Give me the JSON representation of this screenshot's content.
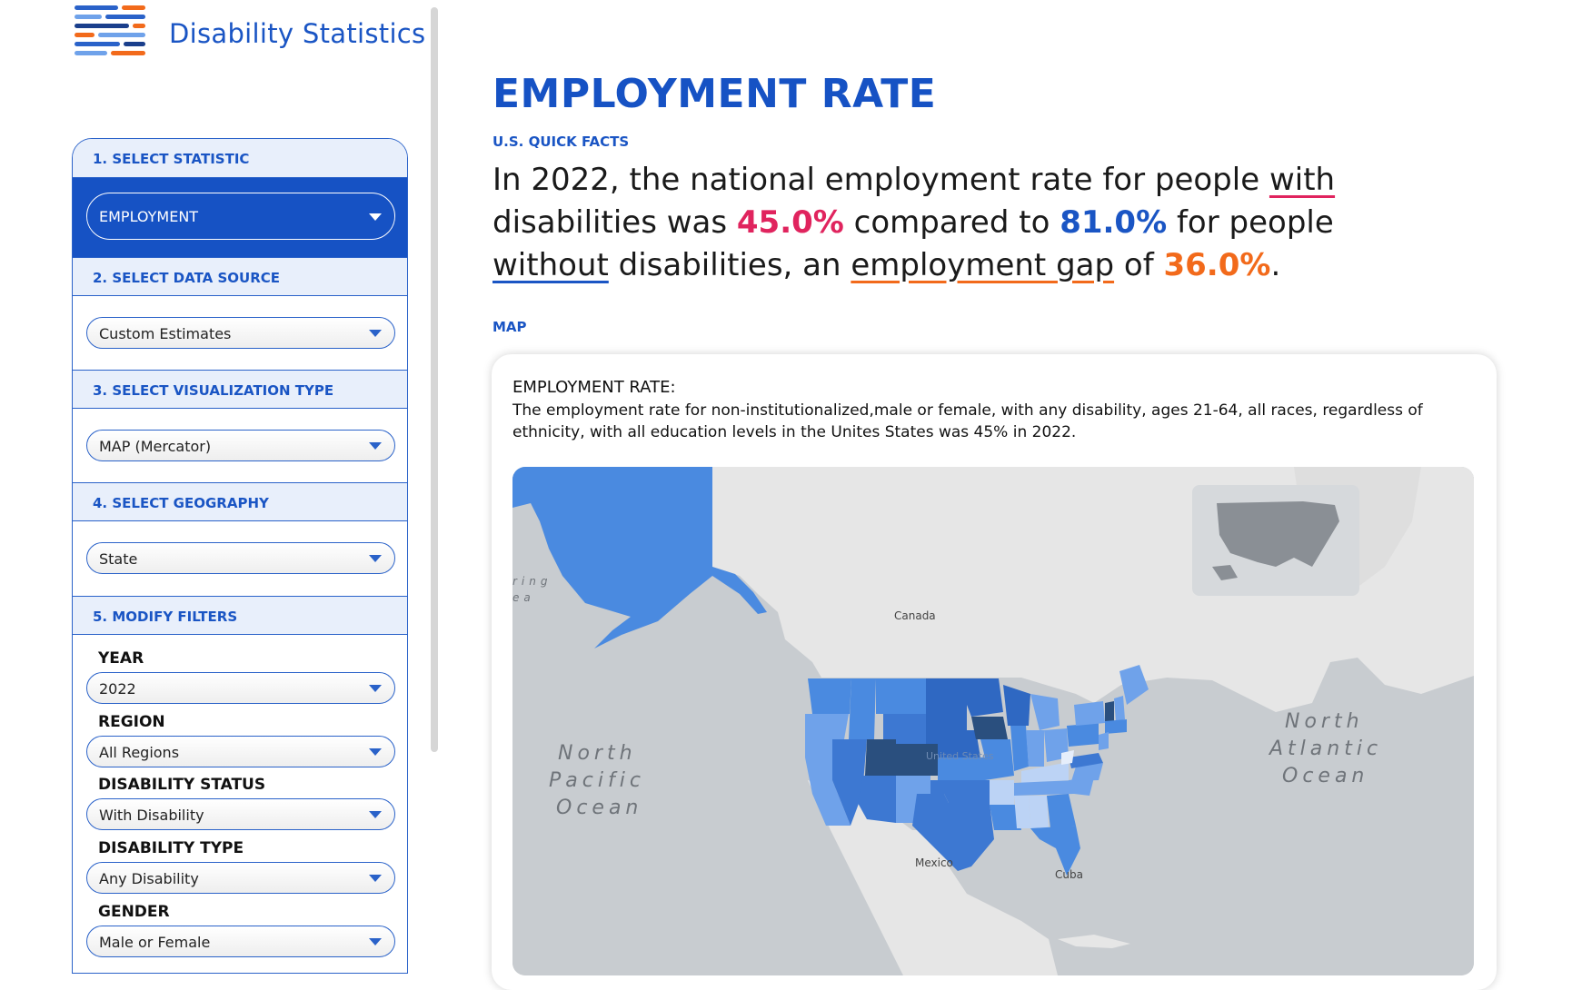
{
  "header": {
    "brand": "Disability Statistics"
  },
  "sidebar": {
    "sections": [
      {
        "heading": "1. SELECT STATISTIC",
        "value": "EMPLOYMENT"
      },
      {
        "heading": "2. SELECT DATA SOURCE",
        "value": "Custom Estimates"
      },
      {
        "heading": "3. SELECT VISUALIZATION TYPE",
        "value": "MAP (Mercator)"
      },
      {
        "heading": "4. SELECT GEOGRAPHY",
        "value": "State"
      },
      {
        "heading": "5. MODIFY FILTERS"
      }
    ],
    "filters": [
      {
        "label": "YEAR",
        "value": "2022"
      },
      {
        "label": "REGION",
        "value": "All Regions"
      },
      {
        "label": "DISABILITY STATUS",
        "value": "With Disability"
      },
      {
        "label": "DISABILITY TYPE",
        "value": "Any Disability"
      },
      {
        "label": "GENDER",
        "value": "Male or Female"
      }
    ]
  },
  "main": {
    "title": "EMPLOYMENT RATE",
    "quick_facts_label": "U.S. QUICK FACTS",
    "fact": {
      "p1": "In 2022, the national employment rate for people ",
      "w_with": "with",
      "p2": " disabilities was ",
      "rate_with": "45.0%",
      "p3": " compared to ",
      "rate_without": "81.0%",
      "p4": " for people ",
      "w_without": "without",
      "p5": " disabilities, an ",
      "w_gap": "employment gap",
      "p6": " of ",
      "gap": "36.0%",
      "p7": "."
    },
    "map_section_label": "MAP",
    "card": {
      "title": "EMPLOYMENT RATE:",
      "description": "The employment rate for non-institutionalized,male or female, with any disability, ages 21-64, all races, regardless of ethnicity, with all education levels in the Unites States was 45% in 2022."
    },
    "map": {
      "labels": {
        "canada": "Canada",
        "mexico": "Mexico",
        "cuba": "Cuba",
        "united_states": "United States",
        "bering": "ring",
        "bering2": "ea",
        "npo1": "North",
        "npo2": "Pacific",
        "npo3": "Ocean",
        "nao1": "North",
        "nao2": "Atlantic",
        "nao3": "Ocean"
      },
      "colors": {
        "light": "#bcd3f5",
        "mid": "#4a8ae0",
        "dark": "#2f68c2",
        "darkest": "#2a4f7e",
        "land": "#e6e6e6",
        "water": "#c8ccd0"
      }
    }
  }
}
